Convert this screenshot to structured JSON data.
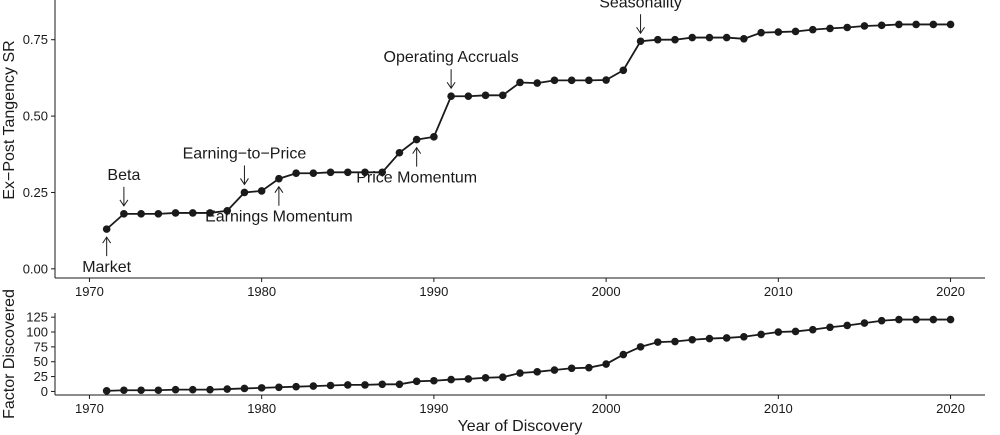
{
  "chart_data": [
    {
      "type": "line",
      "ylabel": "Ex−Post Tangency SR",
      "ylim": [
        -0.03,
        0.88
      ],
      "yticks": [
        0.0,
        0.25,
        0.5,
        0.75
      ],
      "ytick_labels": [
        "0.00",
        "0.25",
        "0.50",
        "0.75"
      ],
      "xlim": [
        1968,
        2022
      ],
      "xticks": [
        1970,
        1980,
        1990,
        2000,
        2010,
        2020
      ],
      "xtick_labels": [
        "1970",
        "1980",
        "1990",
        "2000",
        "2010",
        "2020"
      ],
      "grid": false,
      "x": [
        1971,
        1972,
        1973,
        1974,
        1975,
        1976,
        1977,
        1978,
        1979,
        1980,
        1981,
        1982,
        1983,
        1984,
        1985,
        1986,
        1987,
        1988,
        1989,
        1990,
        1991,
        1992,
        1993,
        1994,
        1995,
        1996,
        1997,
        1998,
        1999,
        2000,
        2001,
        2002,
        2003,
        2004,
        2005,
        2006,
        2007,
        2008,
        2009,
        2010,
        2011,
        2012,
        2013,
        2014,
        2015,
        2016,
        2017,
        2018,
        2019,
        2020
      ],
      "y": [
        0.13,
        0.18,
        0.18,
        0.18,
        0.183,
        0.183,
        0.183,
        0.19,
        0.25,
        0.255,
        0.295,
        0.313,
        0.313,
        0.316,
        0.316,
        0.316,
        0.316,
        0.38,
        0.423,
        0.432,
        0.565,
        0.565,
        0.568,
        0.568,
        0.61,
        0.608,
        0.617,
        0.617,
        0.617,
        0.618,
        0.65,
        0.745,
        0.75,
        0.75,
        0.757,
        0.757,
        0.757,
        0.753,
        0.773,
        0.775,
        0.777,
        0.783,
        0.787,
        0.79,
        0.795,
        0.797,
        0.8,
        0.8,
        0.8,
        0.8
      ],
      "annotations": [
        {
          "text": "Market",
          "x": 1971,
          "y": 0.13,
          "side": "below"
        },
        {
          "text": "Beta",
          "x": 1972,
          "y": 0.18,
          "side": "above"
        },
        {
          "text": "Earning−to−Price",
          "x": 1979,
          "y": 0.25,
          "side": "above"
        },
        {
          "text": "Earnings Momentum",
          "x": 1981,
          "y": 0.295,
          "side": "below"
        },
        {
          "text": "Price Momentum",
          "x": 1989,
          "y": 0.423,
          "side": "below"
        },
        {
          "text": "Operating Accruals",
          "x": 1991,
          "y": 0.565,
          "side": "above"
        },
        {
          "text": "Seasonality",
          "x": 2002,
          "y": 0.745,
          "side": "above"
        }
      ]
    },
    {
      "type": "line",
      "ylabel": "Factor Discovered",
      "xlabel": "Year of Discovery",
      "ylim": [
        -6,
        132
      ],
      "yticks": [
        0,
        25,
        50,
        75,
        100,
        125
      ],
      "ytick_labels": [
        "0",
        "25",
        "50",
        "75",
        "100",
        "125"
      ],
      "xlim": [
        1968,
        2022
      ],
      "xticks": [
        1970,
        1980,
        1990,
        2000,
        2010,
        2020
      ],
      "xtick_labels": [
        "1970",
        "1980",
        "1990",
        "2000",
        "2010",
        "2020"
      ],
      "grid": false,
      "x": [
        1971,
        1972,
        1973,
        1974,
        1975,
        1976,
        1977,
        1978,
        1979,
        1980,
        1981,
        1982,
        1983,
        1984,
        1985,
        1986,
        1987,
        1988,
        1989,
        1990,
        1991,
        1992,
        1993,
        1994,
        1995,
        1996,
        1997,
        1998,
        1999,
        2000,
        2001,
        2002,
        2003,
        2004,
        2005,
        2006,
        2007,
        2008,
        2009,
        2010,
        2011,
        2012,
        2013,
        2014,
        2015,
        2016,
        2017,
        2018,
        2019,
        2020
      ],
      "y": [
        1,
        2,
        2,
        2,
        3,
        3,
        3,
        4,
        5,
        6,
        7,
        8,
        9,
        10,
        11,
        11,
        12,
        12,
        17,
        18,
        20,
        21,
        23,
        24,
        31,
        33,
        36,
        39,
        40,
        46,
        62,
        75,
        83,
        84,
        87,
        89,
        90,
        92,
        96,
        100,
        101,
        104,
        108,
        111,
        115,
        119,
        121,
        121,
        121,
        121
      ]
    }
  ]
}
